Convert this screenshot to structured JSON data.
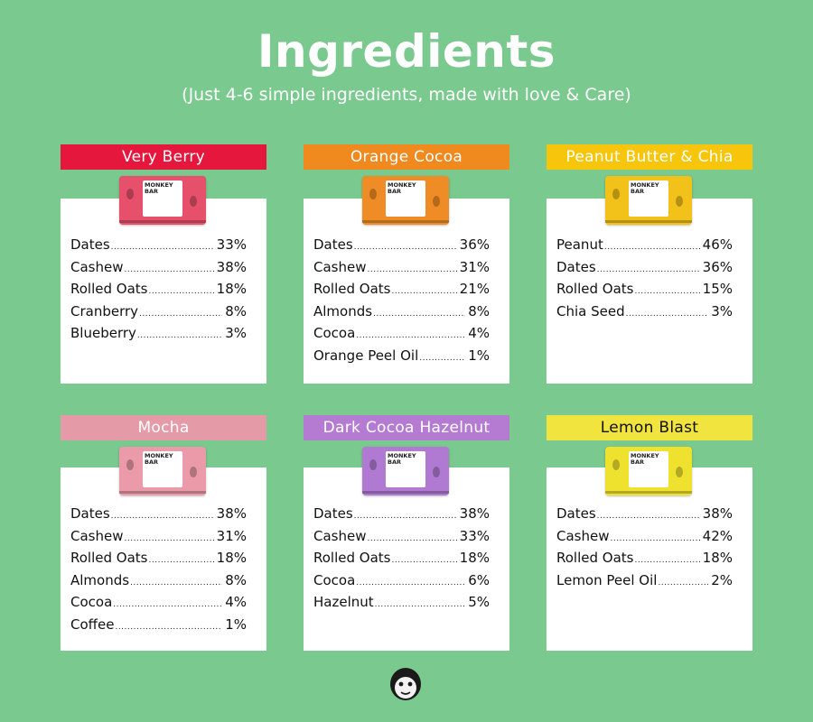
{
  "title": "Ingredients",
  "subtitle": "(Just 4-6 simple ingredients, made with love & Care)",
  "pack_brand": "MONKEY\nBAR",
  "products": [
    {
      "name": "Very Berry",
      "banner_color": "#e5173c",
      "banner_text_color": "#ffffff",
      "pack_color": "#e6506a",
      "ingredients": [
        {
          "name": "Dates",
          "value": "33%"
        },
        {
          "name": "Cashew",
          "value": "38%"
        },
        {
          "name": "Rolled Oats",
          "value": "18%"
        },
        {
          "name": "Cranberry",
          "value": "8%"
        },
        {
          "name": "Blueberry",
          "value": "3%"
        }
      ]
    },
    {
      "name": "Orange Cocoa",
      "banner_color": "#f0891e",
      "banner_text_color": "#ffffff",
      "pack_color": "#f08c25",
      "ingredients": [
        {
          "name": "Dates",
          "value": "36%"
        },
        {
          "name": "Cashew",
          "value": "31%"
        },
        {
          "name": "Rolled Oats",
          "value": "21%"
        },
        {
          "name": "Almonds",
          "value": "8%"
        },
        {
          "name": "Cocoa",
          "value": "4%"
        },
        {
          "name": "Orange Peel Oil",
          "value": "1%"
        }
      ]
    },
    {
      "name": "Peanut Butter & Chia",
      "banner_color": "#f6c50c",
      "banner_text_color": "#ffffff",
      "pack_color": "#f2c21a",
      "ingredients": [
        {
          "name": "Peanut",
          "value": "46%"
        },
        {
          "name": "Dates",
          "value": "36%"
        },
        {
          "name": "Rolled Oats",
          "value": "15%"
        },
        {
          "name": "Chia Seed",
          "value": "3%"
        }
      ]
    },
    {
      "name": "Mocha",
      "banner_color": "#e59aa8",
      "banner_text_color": "#ffffff",
      "pack_color": "#ea9aa9",
      "ingredients": [
        {
          "name": "Dates",
          "value": "38%"
        },
        {
          "name": "Cashew",
          "value": "31%"
        },
        {
          "name": "Rolled Oats",
          "value": "18%"
        },
        {
          "name": "Almonds",
          "value": "8%"
        },
        {
          "name": "Cocoa",
          "value": "4%"
        },
        {
          "name": "Coffee",
          "value": "1%"
        }
      ]
    },
    {
      "name": "Dark Cocoa Hazelnut",
      "banner_color": "#b57bd3",
      "banner_text_color": "#ffffff",
      "pack_color": "#b07ad2",
      "ingredients": [
        {
          "name": "Dates",
          "value": "38%"
        },
        {
          "name": "Cashew",
          "value": "33%"
        },
        {
          "name": "Rolled Oats",
          "value": "18%"
        },
        {
          "name": "Cocoa",
          "value": "6%"
        },
        {
          "name": "Hazelnut",
          "value": "5%"
        }
      ]
    },
    {
      "name": "Lemon Blast",
      "banner_color": "#f1e43f",
      "banner_text_color": "#111111",
      "pack_color": "#efe22e",
      "ingredients": [
        {
          "name": "Dates",
          "value": "38%"
        },
        {
          "name": "Cashew",
          "value": "42%"
        },
        {
          "name": "Rolled Oats",
          "value": "18%"
        },
        {
          "name": "Lemon Peel Oil",
          "value": "2%"
        }
      ]
    }
  ],
  "logo_icon": "monkey-face-icon"
}
